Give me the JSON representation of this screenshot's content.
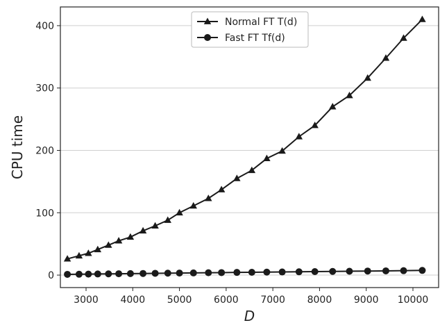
{
  "chart_data": {
    "type": "line",
    "xlabel": "D",
    "ylabel": "CPU time",
    "xlim": [
      2450,
      10550
    ],
    "ylim": [
      -20,
      430
    ],
    "xticks": [
      3000,
      4000,
      5000,
      6000,
      7000,
      8000,
      9000,
      10000
    ],
    "yticks": [
      0,
      100,
      200,
      300,
      400
    ],
    "grid": "y",
    "legend_position": "top-center",
    "series": [
      {
        "name": "Normal FT T(d)",
        "marker": "triangle",
        "color": "#1a1a1a",
        "x": [
          2600,
          2850,
          3050,
          3250,
          3480,
          3700,
          3950,
          4220,
          4480,
          4750,
          5000,
          5300,
          5620,
          5900,
          6230,
          6550,
          6870,
          7200,
          7560,
          7900,
          8280,
          8640,
          9030,
          9420,
          9800,
          10200
        ],
        "y": [
          26,
          31,
          35,
          41,
          48,
          55,
          61,
          71,
          79,
          88,
          100,
          111,
          123,
          137,
          155,
          168,
          187,
          199,
          222,
          240,
          270,
          288,
          316,
          348,
          380,
          410
        ]
      },
      {
        "name": "Fast FT Tf(d)",
        "marker": "circle",
        "color": "#1a1a1a",
        "x": [
          2600,
          2850,
          3050,
          3250,
          3480,
          3700,
          3950,
          4220,
          4480,
          4750,
          5000,
          5300,
          5620,
          5900,
          6230,
          6550,
          6870,
          7200,
          7560,
          7900,
          8280,
          8640,
          9030,
          9420,
          9800,
          10200
        ],
        "y": [
          1.2,
          1.4,
          1.6,
          1.8,
          2.0,
          2.2,
          2.4,
          2.6,
          2.9,
          3.1,
          3.3,
          3.5,
          3.8,
          4.0,
          4.3,
          4.5,
          4.8,
          5.0,
          5.3,
          5.6,
          5.9,
          6.2,
          6.5,
          6.8,
          7.1,
          7.5
        ]
      }
    ]
  }
}
